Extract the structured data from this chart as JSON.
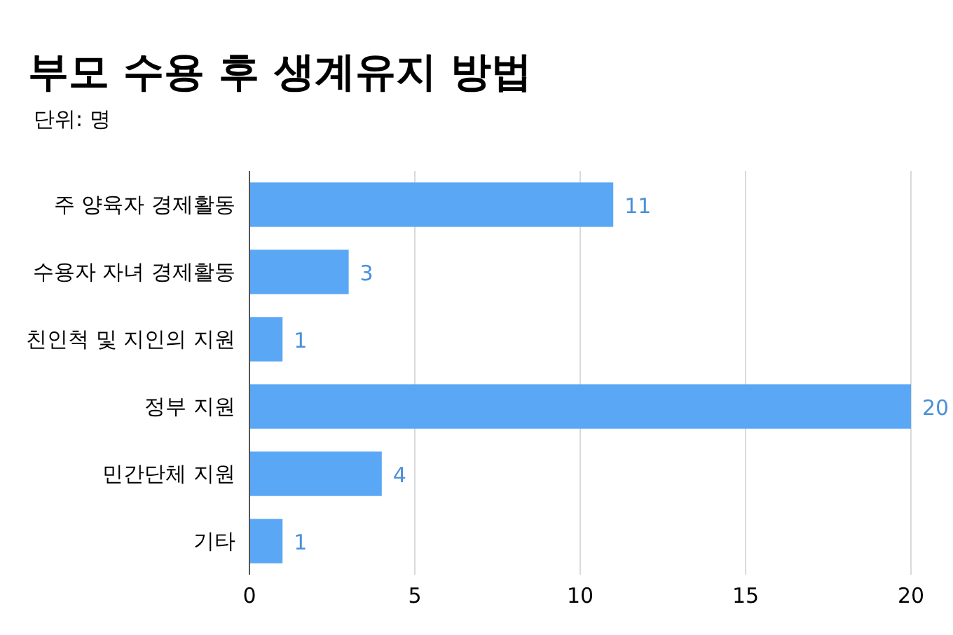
{
  "chart_data": {
    "type": "bar",
    "orientation": "horizontal",
    "title": "부모 수용 후 생계유지 방법",
    "subtitle": "단위: 명",
    "categories": [
      "주 양육자 경제활동",
      "수용자 자녀 경제활동",
      "친인척 및 지인의 지원",
      "정부 지원",
      "민간단체 지원",
      "기타"
    ],
    "values": [
      11,
      3,
      1,
      20,
      4,
      1
    ],
    "color": "#5aa7f5",
    "xlim": [
      0,
      20
    ],
    "xticks": [
      0,
      5,
      10,
      15,
      20
    ],
    "grid": "x",
    "data_labels": true
  }
}
